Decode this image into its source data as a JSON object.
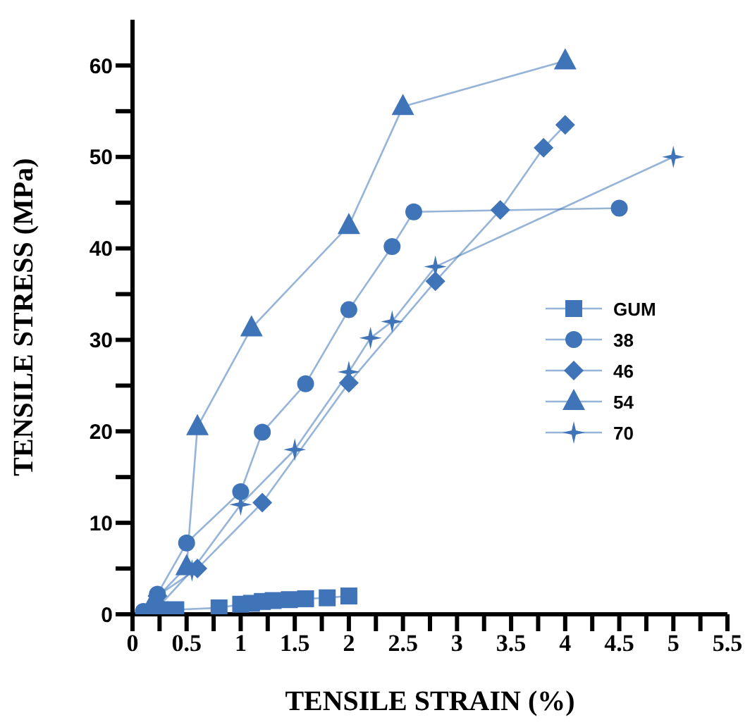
{
  "chart_data": {
    "type": "line",
    "xlabel": "TENSILE STRAIN (%)",
    "ylabel": "TENSILE STRESS (MPa)",
    "xlim": [
      0,
      5.5
    ],
    "xticks": [
      0,
      {
        "value": 0.25,
        "label": null
      },
      0.5,
      {
        "value": 0.75,
        "label": null
      },
      1,
      {
        "value": 1.25,
        "label": null
      },
      1.5,
      {
        "value": 1.75,
        "label": null
      },
      2,
      {
        "value": 2.25,
        "label": null
      },
      2.5,
      {
        "value": 2.75,
        "label": null
      },
      3,
      {
        "value": 3.25,
        "label": null
      },
      3.5,
      {
        "value": 3.75,
        "label": null
      },
      4,
      {
        "value": 4.25,
        "label": null
      },
      4.5,
      {
        "value": 4.75,
        "label": null
      },
      5,
      {
        "value": 5.25,
        "label": null
      },
      5.5
    ],
    "ylim": [
      0,
      65
    ],
    "yticks": [
      0,
      {
        "value": 5,
        "label": null
      },
      10,
      {
        "value": 15,
        "label": null
      },
      20,
      {
        "value": 25,
        "label": null
      },
      30,
      {
        "value": 35,
        "label": null
      },
      40,
      {
        "value": 45,
        "label": null
      },
      50,
      {
        "value": 55,
        "label": null
      },
      60
    ],
    "grid": false,
    "legend": "right",
    "line_style": "solid",
    "series": [
      {
        "name": "GUM",
        "marker": "square",
        "color": "#3f74b8",
        "x": [
          0.25,
          0.4,
          0.8,
          1.0,
          1.1,
          1.2,
          1.3,
          1.45,
          1.6,
          1.8,
          2.0
        ],
        "values": [
          0.5,
          0.5,
          0.7,
          1.1,
          1.2,
          1.4,
          1.5,
          1.6,
          1.7,
          1.8,
          2.0
        ]
      },
      {
        "name": "38",
        "marker": "circle",
        "color": "#3f74b8",
        "x": [
          0.1,
          0.23,
          0.5,
          1.0,
          1.2,
          1.6,
          2.0,
          2.4,
          2.6,
          4.5
        ],
        "values": [
          0.3,
          2.2,
          7.8,
          13.4,
          19.9,
          25.2,
          33.3,
          40.2,
          44,
          44.4
        ]
      },
      {
        "name": "46",
        "marker": "diamond",
        "color": "#3f74b8",
        "x": [
          0.23,
          0.6,
          1.2,
          2.0,
          2.8,
          3.4,
          3.8,
          4.0
        ],
        "values": [
          2,
          5,
          12.2,
          25.3,
          36.4,
          44.2,
          51,
          53.5
        ]
      },
      {
        "name": "54",
        "marker": "triangle",
        "color": "#3f74b8",
        "x": [
          0.2,
          0.5,
          0.6,
          1.1,
          2.0,
          2.5,
          4.0
        ],
        "values": [
          1.5,
          5.2,
          20.5,
          31.3,
          42.5,
          55.5,
          60.5
        ]
      },
      {
        "name": "70",
        "marker": "star",
        "color": "#3f74b8",
        "x": [
          0.27,
          0.55,
          1.0,
          1.5,
          2.0,
          2.2,
          2.4,
          2.8,
          5.0
        ],
        "values": [
          1.2,
          4.8,
          12,
          18,
          26.5,
          30.2,
          32,
          38,
          50
        ]
      }
    ]
  }
}
